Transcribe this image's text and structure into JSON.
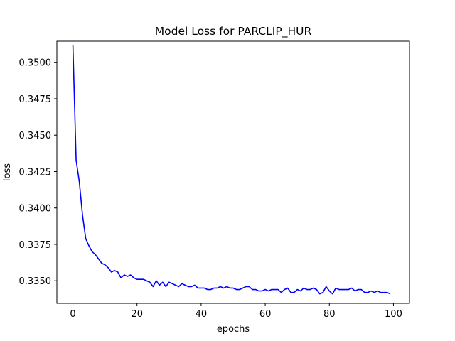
{
  "chart_data": {
    "type": "line",
    "title": "Model Loss for PARCLIP_HUR",
    "xlabel": "epochs",
    "ylabel": "loss",
    "xlim": [
      -5,
      105
    ],
    "ylim": [
      0.33345,
      0.35145
    ],
    "xticks": [
      0,
      20,
      40,
      60,
      80,
      100
    ],
    "yticks": [
      0.335,
      0.3375,
      0.34,
      0.3425,
      0.345,
      0.3475,
      0.35
    ],
    "ytick_labels": [
      "0.3350",
      "0.3375",
      "0.3400",
      "0.3425",
      "0.3450",
      "0.3475",
      "0.3500"
    ],
    "grid": false,
    "series": [
      {
        "name": "",
        "color": "#0000ff",
        "x": [
          0,
          1,
          2,
          3,
          4,
          5,
          6,
          7,
          8,
          9,
          10,
          11,
          12,
          13,
          14,
          15,
          16,
          17,
          18,
          19,
          20,
          21,
          22,
          23,
          24,
          25,
          26,
          27,
          28,
          29,
          30,
          31,
          32,
          33,
          34,
          35,
          36,
          37,
          38,
          39,
          40,
          41,
          42,
          43,
          44,
          45,
          46,
          47,
          48,
          49,
          50,
          51,
          52,
          53,
          54,
          55,
          56,
          57,
          58,
          59,
          60,
          61,
          62,
          63,
          64,
          65,
          66,
          67,
          68,
          69,
          70,
          71,
          72,
          73,
          74,
          75,
          76,
          77,
          78,
          79,
          80,
          81,
          82,
          83,
          84,
          85,
          86,
          87,
          88,
          89,
          90,
          91,
          92,
          93,
          94,
          95,
          96,
          97,
          98,
          99
        ],
        "values": [
          0.3512,
          0.3433,
          0.3418,
          0.3395,
          0.3379,
          0.3374,
          0.337,
          0.3368,
          0.3365,
          0.3362,
          0.3361,
          0.3359,
          0.3356,
          0.3357,
          0.3356,
          0.3352,
          0.3354,
          0.3353,
          0.3354,
          0.3352,
          0.3351,
          0.3351,
          0.3351,
          0.335,
          0.3349,
          0.3346,
          0.335,
          0.3347,
          0.3349,
          0.3346,
          0.3349,
          0.3348,
          0.3347,
          0.3346,
          0.3348,
          0.3347,
          0.3346,
          0.3346,
          0.3347,
          0.3345,
          0.3345,
          0.3345,
          0.3344,
          0.3344,
          0.3345,
          0.3345,
          0.3346,
          0.3345,
          0.3346,
          0.3345,
          0.3345,
          0.3344,
          0.3344,
          0.3345,
          0.3346,
          0.3346,
          0.3344,
          0.3344,
          0.3343,
          0.3343,
          0.3344,
          0.3343,
          0.3344,
          0.3344,
          0.3344,
          0.3342,
          0.3344,
          0.3345,
          0.3342,
          0.3342,
          0.3344,
          0.3343,
          0.3345,
          0.3344,
          0.3344,
          0.3345,
          0.3344,
          0.3341,
          0.3342,
          0.3346,
          0.3343,
          0.3341,
          0.3345,
          0.3344,
          0.3344,
          0.3344,
          0.3344,
          0.3345,
          0.3343,
          0.3344,
          0.3344,
          0.3342,
          0.3342,
          0.3343,
          0.3342,
          0.3343,
          0.3342,
          0.3342,
          0.3342,
          0.3341
        ]
      }
    ]
  }
}
